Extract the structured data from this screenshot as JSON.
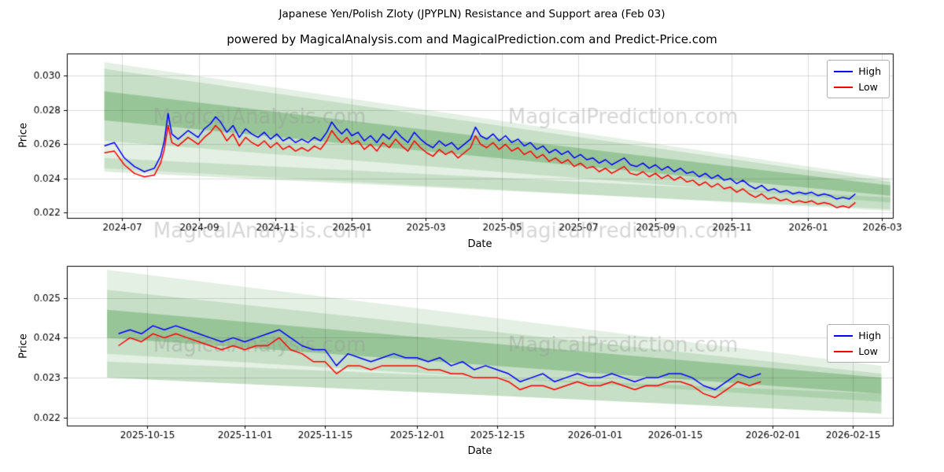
{
  "figure": {
    "title": "Japanese Yen/Polish Zloty (JPYPLN) Resistance and Support area (Feb 03)",
    "subtitle": "powered by MagicalAnalysis.com and MagicalPrediction.com and Predict-Price.com",
    "background": "#ffffff"
  },
  "colors": {
    "high": "#0000ff",
    "low": "#ff0000",
    "band": "#2e8b2e",
    "grid": "rgba(0,0,0,0.13)",
    "axis": "#000000",
    "watermark": "rgba(150,150,150,0.38)"
  },
  "watermarks": [
    "MagicalAnalysis.com",
    "MagicalPrediction.com"
  ],
  "chart_data": [
    {
      "type": "line",
      "title": "",
      "xlabel": "Date",
      "ylabel": "Price",
      "grid": true,
      "legend_loc": "upper right",
      "xlim": [
        "2024-05-18",
        "2026-03-10"
      ],
      "ylim": [
        0.0217,
        0.0313
      ],
      "x_ticks": [
        {
          "label": "2024-07",
          "date": "2024-07-01"
        },
        {
          "label": "2024-09",
          "date": "2024-09-01"
        },
        {
          "label": "2024-11",
          "date": "2024-11-01"
        },
        {
          "label": "2025-01",
          "date": "2025-01-01"
        },
        {
          "label": "2025-03",
          "date": "2025-03-01"
        },
        {
          "label": "2025-05",
          "date": "2025-05-01"
        },
        {
          "label": "2025-07",
          "date": "2025-07-01"
        },
        {
          "label": "2025-09",
          "date": "2025-09-01"
        },
        {
          "label": "2025-11",
          "date": "2025-11-01"
        },
        {
          "label": "2026-01",
          "date": "2026-01-01"
        },
        {
          "label": "2026-03",
          "date": "2026-03-01"
        }
      ],
      "y_ticks": [
        {
          "label": "0.022",
          "value": 0.022
        },
        {
          "label": "0.024",
          "value": 0.024
        },
        {
          "label": "0.026",
          "value": 0.026
        },
        {
          "label": "0.028",
          "value": 0.028
        },
        {
          "label": "0.030",
          "value": 0.03
        }
      ],
      "bands": [
        {
          "x": [
            "2024-06-17",
            "2026-03-08"
          ],
          "top": [
            0.0308,
            0.024
          ],
          "bottom": [
            0.0246,
            0.0221
          ],
          "alpha": 0.13
        },
        {
          "x": [
            "2024-06-17",
            "2026-03-08"
          ],
          "top": [
            0.0304,
            0.0238
          ],
          "bottom": [
            0.0262,
            0.0226
          ],
          "alpha": 0.16
        },
        {
          "x": [
            "2024-06-17",
            "2026-03-08"
          ],
          "top": [
            0.0291,
            0.0236
          ],
          "bottom": [
            0.0274,
            0.023
          ],
          "alpha": 0.3
        },
        {
          "x": [
            "2024-06-17",
            "2026-03-08"
          ],
          "top": [
            0.0252,
            0.0229
          ],
          "bottom": [
            0.0244,
            0.0222
          ],
          "alpha": 0.16
        }
      ],
      "x": [
        "2024-06-17",
        "2024-06-25",
        "2024-07-03",
        "2024-07-11",
        "2024-07-19",
        "2024-07-27",
        "2024-08-01",
        "2024-08-04",
        "2024-08-07",
        "2024-08-10",
        "2024-08-15",
        "2024-08-23",
        "2024-08-31",
        "2024-09-05",
        "2024-09-10",
        "2024-09-14",
        "2024-09-18",
        "2024-09-23",
        "2024-09-28",
        "2024-10-03",
        "2024-10-08",
        "2024-10-13",
        "2024-10-18",
        "2024-10-23",
        "2024-10-28",
        "2024-11-02",
        "2024-11-07",
        "2024-11-12",
        "2024-11-17",
        "2024-11-22",
        "2024-11-27",
        "2024-12-02",
        "2024-12-07",
        "2024-12-12",
        "2024-12-16",
        "2024-12-20",
        "2024-12-24",
        "2024-12-28",
        "2025-01-01",
        "2025-01-06",
        "2025-01-11",
        "2025-01-16",
        "2025-01-21",
        "2025-01-26",
        "2025-01-31",
        "2025-02-05",
        "2025-02-10",
        "2025-02-15",
        "2025-02-20",
        "2025-02-25",
        "2025-03-02",
        "2025-03-07",
        "2025-03-12",
        "2025-03-17",
        "2025-03-22",
        "2025-03-27",
        "2025-04-01",
        "2025-04-06",
        "2025-04-10",
        "2025-04-14",
        "2025-04-19",
        "2025-04-24",
        "2025-04-29",
        "2025-05-04",
        "2025-05-09",
        "2025-05-14",
        "2025-05-19",
        "2025-05-24",
        "2025-05-29",
        "2025-06-03",
        "2025-06-08",
        "2025-06-13",
        "2025-06-18",
        "2025-06-23",
        "2025-06-28",
        "2025-07-03",
        "2025-07-08",
        "2025-07-13",
        "2025-07-18",
        "2025-07-23",
        "2025-07-28",
        "2025-08-02",
        "2025-08-07",
        "2025-08-12",
        "2025-08-17",
        "2025-08-22",
        "2025-08-27",
        "2025-09-01",
        "2025-09-06",
        "2025-09-11",
        "2025-09-16",
        "2025-09-21",
        "2025-09-26",
        "2025-10-01",
        "2025-10-06",
        "2025-10-11",
        "2025-10-16",
        "2025-10-21",
        "2025-10-26",
        "2025-10-31",
        "2025-11-05",
        "2025-11-10",
        "2025-11-15",
        "2025-11-20",
        "2025-11-25",
        "2025-11-30",
        "2025-12-05",
        "2025-12-10",
        "2025-12-15",
        "2025-12-20",
        "2025-12-25",
        "2025-12-30",
        "2026-01-04",
        "2026-01-09",
        "2026-01-14",
        "2026-01-19",
        "2026-01-24",
        "2026-01-29",
        "2026-02-03",
        "2026-02-08"
      ],
      "series": [
        {
          "name": "High",
          "color": "#0000ff",
          "values": [
            0.0259,
            0.0261,
            0.0252,
            0.0247,
            0.0244,
            0.0246,
            0.0253,
            0.0262,
            0.0278,
            0.0266,
            0.0263,
            0.0268,
            0.0264,
            0.0269,
            0.0272,
            0.0276,
            0.0273,
            0.0267,
            0.0271,
            0.0264,
            0.0269,
            0.0266,
            0.0264,
            0.0267,
            0.0263,
            0.0266,
            0.0262,
            0.0264,
            0.0261,
            0.0263,
            0.0261,
            0.0264,
            0.0262,
            0.0267,
            0.0273,
            0.0269,
            0.0266,
            0.0269,
            0.0265,
            0.0267,
            0.0262,
            0.0265,
            0.0261,
            0.0266,
            0.0263,
            0.0268,
            0.0264,
            0.0261,
            0.0267,
            0.0263,
            0.026,
            0.0258,
            0.0262,
            0.0259,
            0.0261,
            0.0257,
            0.026,
            0.0263,
            0.027,
            0.0265,
            0.0263,
            0.0266,
            0.0262,
            0.0265,
            0.0261,
            0.0263,
            0.0259,
            0.0261,
            0.0257,
            0.0259,
            0.0255,
            0.0257,
            0.0254,
            0.0256,
            0.0252,
            0.0254,
            0.0251,
            0.0252,
            0.0249,
            0.0251,
            0.0248,
            0.025,
            0.0252,
            0.0248,
            0.0247,
            0.0249,
            0.0246,
            0.0248,
            0.0245,
            0.0247,
            0.0244,
            0.0246,
            0.0243,
            0.0244,
            0.0241,
            0.0243,
            0.024,
            0.0242,
            0.0239,
            0.024,
            0.0237,
            0.0239,
            0.0236,
            0.0234,
            0.0236,
            0.0233,
            0.0234,
            0.0232,
            0.0233,
            0.0231,
            0.0232,
            0.0231,
            0.0232,
            0.023,
            0.0231,
            0.023,
            0.0228,
            0.0229,
            0.0228,
            0.0231
          ]
        },
        {
          "name": "Low",
          "color": "#ff0000",
          "values": [
            0.0255,
            0.0256,
            0.0248,
            0.0243,
            0.0241,
            0.0242,
            0.0249,
            0.0257,
            0.0271,
            0.0261,
            0.0259,
            0.0264,
            0.026,
            0.0264,
            0.0267,
            0.0271,
            0.0268,
            0.0262,
            0.0266,
            0.0259,
            0.0264,
            0.0261,
            0.0259,
            0.0262,
            0.0258,
            0.0261,
            0.0257,
            0.0259,
            0.0256,
            0.0258,
            0.0256,
            0.0259,
            0.0257,
            0.0262,
            0.0268,
            0.0264,
            0.0261,
            0.0264,
            0.026,
            0.0262,
            0.0257,
            0.026,
            0.0256,
            0.0261,
            0.0258,
            0.0263,
            0.0259,
            0.0256,
            0.0262,
            0.0258,
            0.0255,
            0.0253,
            0.0257,
            0.0254,
            0.0256,
            0.0252,
            0.0255,
            0.0258,
            0.0265,
            0.026,
            0.0258,
            0.0261,
            0.0257,
            0.026,
            0.0256,
            0.0258,
            0.0254,
            0.0256,
            0.0252,
            0.0254,
            0.025,
            0.0252,
            0.0249,
            0.0251,
            0.0247,
            0.0249,
            0.0246,
            0.0247,
            0.0244,
            0.0246,
            0.0243,
            0.0245,
            0.0247,
            0.0243,
            0.0242,
            0.0244,
            0.0241,
            0.0243,
            0.024,
            0.0242,
            0.0239,
            0.0241,
            0.0238,
            0.0239,
            0.0236,
            0.0238,
            0.0235,
            0.0237,
            0.0234,
            0.0235,
            0.0232,
            0.0234,
            0.0231,
            0.0229,
            0.0231,
            0.0228,
            0.0229,
            0.0227,
            0.0228,
            0.0226,
            0.0227,
            0.0226,
            0.0227,
            0.0225,
            0.0226,
            0.0225,
            0.0223,
            0.0224,
            0.0223,
            0.0226
          ]
        }
      ]
    },
    {
      "type": "line",
      "title": "",
      "xlabel": "Date",
      "ylabel": "Price",
      "grid": true,
      "legend_loc": "center right",
      "xlim": [
        "2025-10-01",
        "2026-02-22"
      ],
      "ylim": [
        0.0218,
        0.0258
      ],
      "x_ticks": [
        {
          "label": "2025-10-15",
          "date": "2025-10-15"
        },
        {
          "label": "2025-11-01",
          "date": "2025-11-01"
        },
        {
          "label": "2025-11-15",
          "date": "2025-11-15"
        },
        {
          "label": "2025-12-01",
          "date": "2025-12-01"
        },
        {
          "label": "2025-12-15",
          "date": "2025-12-15"
        },
        {
          "label": "2026-01-01",
          "date": "2026-01-01"
        },
        {
          "label": "2026-01-15",
          "date": "2026-01-15"
        },
        {
          "label": "2026-02-01",
          "date": "2026-02-01"
        },
        {
          "label": "2026-02-15",
          "date": "2026-02-15"
        }
      ],
      "y_ticks": [
        {
          "label": "0.022",
          "value": 0.022
        },
        {
          "label": "0.023",
          "value": 0.023
        },
        {
          "label": "0.024",
          "value": 0.024
        },
        {
          "label": "0.025",
          "value": 0.025
        }
      ],
      "bands": [
        {
          "x": [
            "2025-10-08",
            "2026-02-20"
          ],
          "top": [
            0.0257,
            0.0233
          ],
          "bottom": [
            0.023,
            0.0221
          ],
          "alpha": 0.13
        },
        {
          "x": [
            "2025-10-08",
            "2026-02-20"
          ],
          "top": [
            0.0252,
            0.0231
          ],
          "bottom": [
            0.0236,
            0.0224
          ],
          "alpha": 0.16
        },
        {
          "x": [
            "2025-10-08",
            "2026-02-20"
          ],
          "top": [
            0.0247,
            0.023
          ],
          "bottom": [
            0.024,
            0.0226
          ],
          "alpha": 0.3
        },
        {
          "x": [
            "2025-10-08",
            "2026-02-20"
          ],
          "top": [
            0.0234,
            0.0226
          ],
          "bottom": [
            0.023,
            0.0221
          ],
          "alpha": 0.16
        }
      ],
      "x": [
        "2025-10-10",
        "2025-10-12",
        "2025-10-14",
        "2025-10-16",
        "2025-10-18",
        "2025-10-20",
        "2025-10-22",
        "2025-10-24",
        "2025-10-26",
        "2025-10-28",
        "2025-10-30",
        "2025-11-01",
        "2025-11-03",
        "2025-11-05",
        "2025-11-07",
        "2025-11-09",
        "2025-11-11",
        "2025-11-13",
        "2025-11-15",
        "2025-11-17",
        "2025-11-19",
        "2025-11-21",
        "2025-11-23",
        "2025-11-25",
        "2025-11-27",
        "2025-11-29",
        "2025-12-01",
        "2025-12-03",
        "2025-12-05",
        "2025-12-07",
        "2025-12-09",
        "2025-12-11",
        "2025-12-13",
        "2025-12-15",
        "2025-12-17",
        "2025-12-19",
        "2025-12-21",
        "2025-12-23",
        "2025-12-25",
        "2025-12-27",
        "2025-12-29",
        "2025-12-31",
        "2026-01-02",
        "2026-01-04",
        "2026-01-06",
        "2026-01-08",
        "2026-01-10",
        "2026-01-12",
        "2026-01-14",
        "2026-01-16",
        "2026-01-18",
        "2026-01-20",
        "2026-01-22",
        "2026-01-24",
        "2026-01-26",
        "2026-01-28",
        "2026-01-30"
      ],
      "series": [
        {
          "name": "High",
          "color": "#0000ff",
          "values": [
            0.0241,
            0.0242,
            0.0241,
            0.0243,
            0.0242,
            0.0243,
            0.0242,
            0.0241,
            0.024,
            0.0239,
            0.024,
            0.0239,
            0.024,
            0.0241,
            0.0242,
            0.024,
            0.0238,
            0.0237,
            0.0237,
            0.0233,
            0.0236,
            0.0235,
            0.0234,
            0.0235,
            0.0236,
            0.0235,
            0.0235,
            0.0234,
            0.0235,
            0.0233,
            0.0234,
            0.0232,
            0.0233,
            0.0232,
            0.0231,
            0.0229,
            0.023,
            0.0231,
            0.0229,
            0.023,
            0.0231,
            0.023,
            0.023,
            0.0231,
            0.023,
            0.0229,
            0.023,
            0.023,
            0.0231,
            0.0231,
            0.023,
            0.0228,
            0.0227,
            0.0229,
            0.0231,
            0.023,
            0.0231
          ]
        },
        {
          "name": "Low",
          "color": "#ff0000",
          "values": [
            0.0238,
            0.024,
            0.0239,
            0.0241,
            0.024,
            0.0241,
            0.024,
            0.0239,
            0.0238,
            0.0237,
            0.0238,
            0.0237,
            0.0238,
            0.0238,
            0.024,
            0.0237,
            0.0236,
            0.0234,
            0.0234,
            0.0231,
            0.0233,
            0.0233,
            0.0232,
            0.0233,
            0.0233,
            0.0233,
            0.0233,
            0.0232,
            0.0232,
            0.0231,
            0.0231,
            0.023,
            0.023,
            0.023,
            0.0229,
            0.0227,
            0.0228,
            0.0228,
            0.0227,
            0.0228,
            0.0229,
            0.0228,
            0.0228,
            0.0229,
            0.0228,
            0.0227,
            0.0228,
            0.0228,
            0.0229,
            0.0229,
            0.0228,
            0.0226,
            0.0225,
            0.0227,
            0.0229,
            0.0228,
            0.0229
          ]
        }
      ]
    }
  ]
}
